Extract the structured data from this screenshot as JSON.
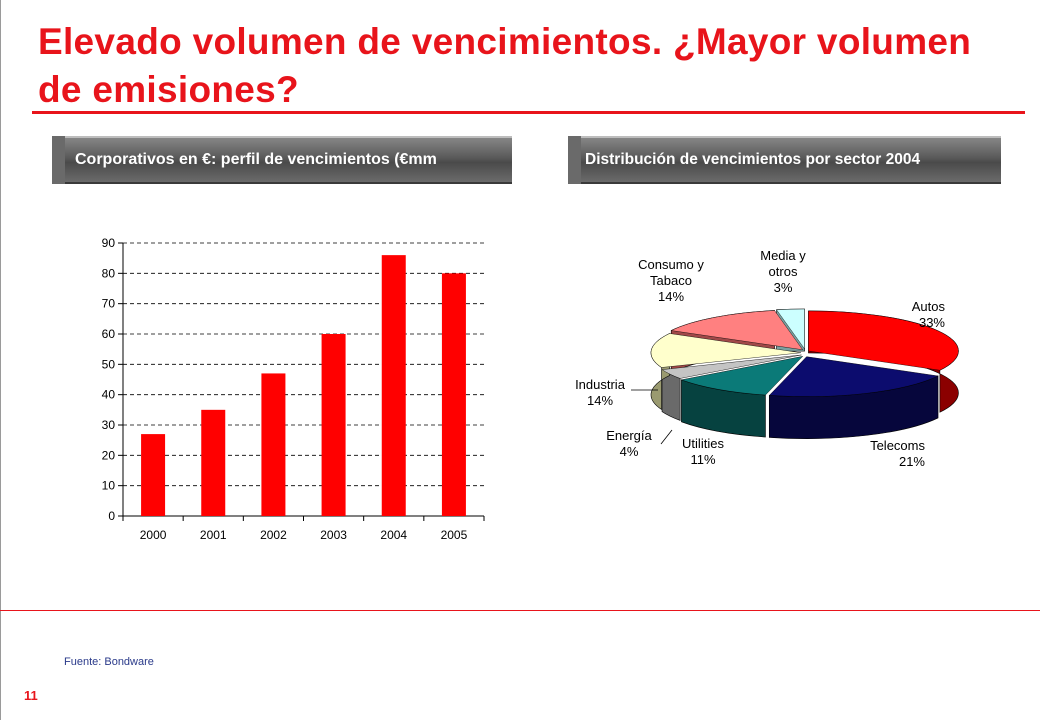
{
  "slide": {
    "title": "Elevado volumen de vencimientos. ¿Mayor volumen de emisiones?",
    "left_header": "Corporativos en €: perfil de vencimientos (€mm",
    "right_header": "Distribución de vencimientos por sector 2004",
    "source": "Fuente: Bondware",
    "page_number": "11",
    "colors": {
      "accent": "#e8141b",
      "bar": "#ff0000"
    }
  },
  "chart_data": [
    {
      "type": "bar",
      "categories": [
        "2000",
        "2001",
        "2002",
        "2003",
        "2004",
        "2005"
      ],
      "values": [
        27,
        35,
        47,
        60,
        86,
        80
      ],
      "ylim": [
        0,
        90
      ],
      "yticks": [
        0,
        10,
        20,
        30,
        40,
        50,
        60,
        70,
        80,
        90
      ],
      "grid": true,
      "legend": "none"
    },
    {
      "type": "pie",
      "style": "3d-exploded",
      "slices": [
        {
          "label": [
            "Autos",
            "33%"
          ],
          "value": 33,
          "color": "#ff0000",
          "side": "#8b0000"
        },
        {
          "label": [
            "Telecoms",
            "21%"
          ],
          "value": 21,
          "color": "#0c0c6e",
          "side": "#06063c"
        },
        {
          "label": [
            "Utilities",
            "11%"
          ],
          "value": 11,
          "color": "#0b7a78",
          "side": "#064240"
        },
        {
          "label": [
            "Energía",
            "4%"
          ],
          "value": 4,
          "color": "#c4c4c4",
          "side": "#6a6a6a"
        },
        {
          "label": [
            "Industria",
            "14%"
          ],
          "value": 14,
          "color": "#ffffcc",
          "side": "#9a9a70"
        },
        {
          "label": [
            "Consumo y",
            "Tabaco",
            "14%"
          ],
          "value": 14,
          "color": "#ff8080",
          "side": "#a04848"
        },
        {
          "label": [
            "Media y",
            "otros",
            "3%"
          ],
          "value": 3,
          "color": "#ccffff",
          "side": "#7aa0a0"
        }
      ]
    }
  ]
}
